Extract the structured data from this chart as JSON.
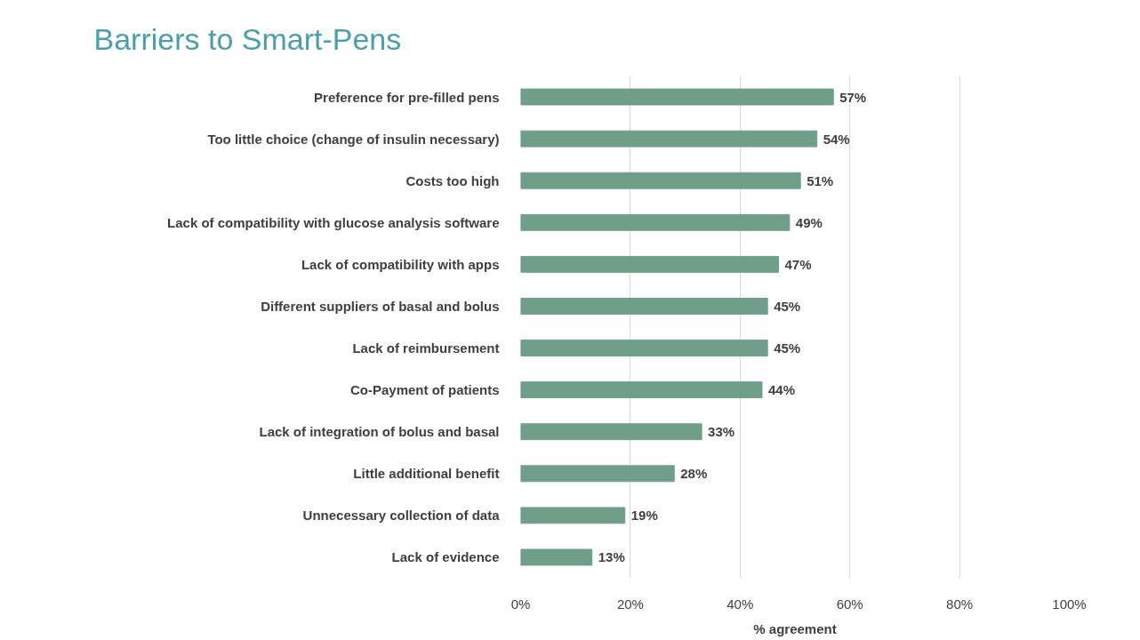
{
  "chart_data": {
    "type": "bar",
    "orientation": "horizontal",
    "title": "Barriers to Smart-Pens",
    "xlabel": "% agreement",
    "categories": [
      "Preference for pre-filled pens",
      "Too little choice (change of insulin necessary)",
      "Costs too high",
      "Lack of compatibility with glucose analysis software",
      "Lack of compatibility with apps",
      "Different suppliers of basal and bolus",
      "Lack of reimbursement",
      "Co-Payment of patients",
      "Lack of integration of bolus and basal",
      "Little additional benefit",
      "Unnecessary collection of data",
      "Lack of evidence"
    ],
    "values": [
      57,
      54,
      51,
      49,
      47,
      45,
      45,
      44,
      33,
      28,
      19,
      13
    ],
    "value_labels": [
      "57%",
      "54%",
      "51%",
      "49%",
      "47%",
      "45%",
      "45%",
      "44%",
      "33%",
      "28%",
      "19%",
      "13%"
    ],
    "color": "#6f9f89",
    "xlim": [
      0,
      100
    ],
    "xticks": [
      {
        "value": 0,
        "label": "0%"
      },
      {
        "value": 20,
        "label": "20%"
      },
      {
        "value": 40,
        "label": "40%"
      },
      {
        "value": 60,
        "label": "60%"
      },
      {
        "value": 80,
        "label": "80%"
      },
      {
        "value": 100,
        "label": "100%"
      }
    ],
    "grid": "x"
  }
}
